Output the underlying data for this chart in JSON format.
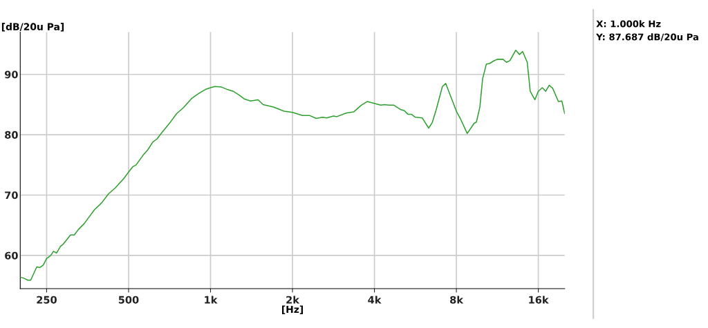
{
  "chart_data": {
    "type": "line",
    "xlabel": "[Hz]",
    "ylabel": "[dB/20u Pa]",
    "log": "x",
    "grid": true,
    "marker": "none",
    "line_style": "solid",
    "xlim": [
      200,
      20000
    ],
    "ylim": [
      54.5,
      97
    ],
    "xticks": [
      250,
      500,
      {
        "value": 1000,
        "label": "1k"
      },
      {
        "value": 2000,
        "label": "2k"
      },
      {
        "value": 4000,
        "label": "4k"
      },
      {
        "value": 8000,
        "label": "8k"
      },
      {
        "value": 16000,
        "label": "16k"
      }
    ],
    "yticks": [
      60,
      70,
      80,
      90
    ],
    "annotations": [
      "X: 1.000k Hz",
      "Y: 87.687 dB/20u Pa"
    ],
    "series": [
      {
        "color": "#2ca02c",
        "x": [
          200,
          207,
          213,
          218.5,
          230,
          236,
          243,
          250,
          259,
          265,
          272,
          281,
          288,
          306,
          316,
          327,
          344,
          357,
          375,
          398,
          422,
          447,
          479,
          500,
          518,
          533,
          565,
          588,
          614,
          636,
          661,
          715,
          751,
          796,
          852,
          903,
          957,
          1000,
          1037,
          1098,
          1153,
          1211,
          1271,
          1335,
          1402,
          1495,
          1561,
          1704,
          1861,
          2000,
          2175,
          2307,
          2446,
          2582,
          2670,
          2830,
          2910,
          3150,
          3360,
          3580,
          3760,
          4000,
          4220,
          4350,
          4520,
          4720,
          4980,
          5150,
          5310,
          5460,
          5660,
          5990,
          6330,
          6520,
          6740,
          7110,
          7310,
          7650,
          8000,
          8270,
          8770,
          9300,
          9480,
          9760,
          9990,
          10310,
          10600,
          10940,
          11300,
          11870,
          12230,
          12590,
          13210,
          13650,
          14010,
          14570,
          14940,
          15540,
          16000,
          16540,
          17040,
          17550,
          18070,
          18960,
          19520,
          20000
        ],
        "values": [
          56.4,
          56.2,
          55.9,
          55.9,
          58.1,
          58.0,
          58.4,
          59.5,
          60.0,
          60.7,
          60.4,
          61.5,
          61.9,
          63.4,
          63.4,
          64.3,
          65.3,
          66.3,
          67.6,
          68.7,
          70.2,
          71.2,
          72.7,
          73.8,
          74.7,
          75.0,
          76.6,
          77.5,
          78.8,
          79.3,
          80.3,
          82.2,
          83.5,
          84.5,
          86.0,
          86.8,
          87.5,
          87.8,
          88.0,
          87.9,
          87.5,
          87.2,
          86.6,
          85.9,
          85.6,
          85.8,
          85.0,
          84.6,
          83.9,
          83.7,
          83.2,
          83.2,
          82.7,
          82.9,
          82.8,
          83.1,
          83.0,
          83.6,
          83.8,
          84.9,
          85.5,
          85.2,
          84.9,
          85.0,
          84.9,
          84.9,
          84.2,
          84.0,
          83.4,
          83.4,
          82.9,
          82.8,
          81.1,
          82.0,
          84.1,
          88.0,
          88.5,
          86.2,
          83.9,
          82.7,
          80.2,
          81.9,
          82.1,
          84.6,
          89.3,
          91.7,
          91.8,
          92.2,
          92.5,
          92.5,
          92.0,
          92.3,
          94.0,
          93.3,
          93.8,
          92.0,
          87.2,
          85.8,
          87.2,
          87.8,
          87.2,
          88.2,
          87.7,
          85.5,
          85.6,
          83.5
        ]
      }
    ]
  }
}
